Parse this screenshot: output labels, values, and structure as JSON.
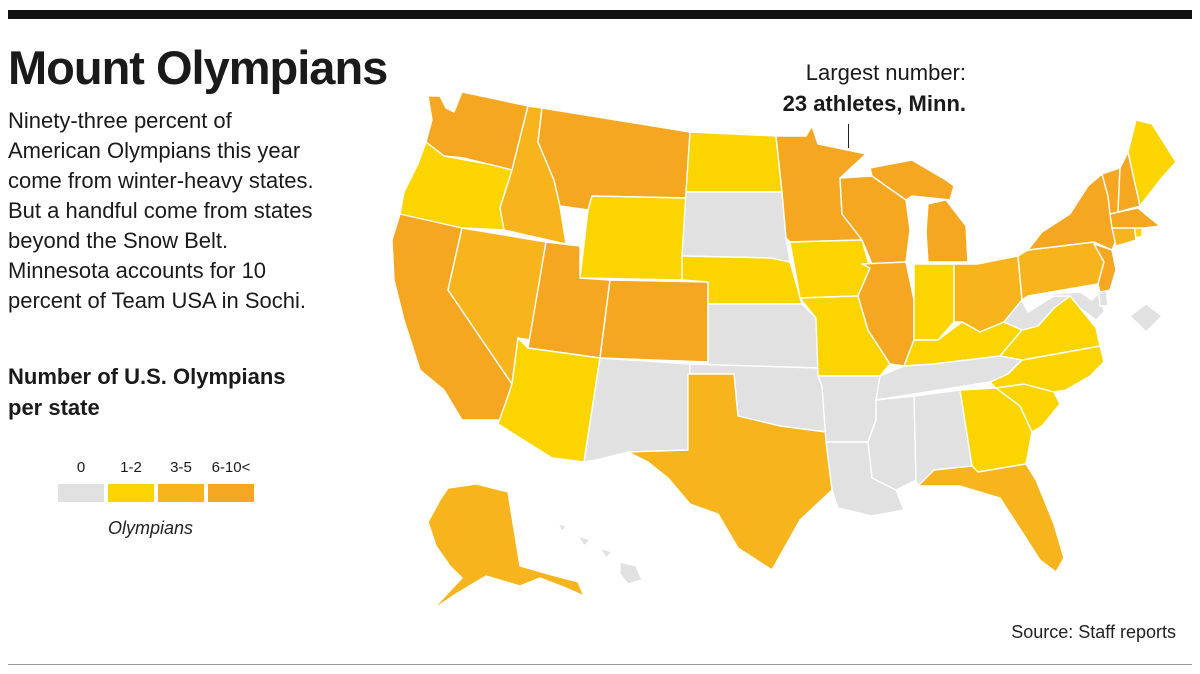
{
  "title": "Mount Olympians",
  "dek_lines": [
    "Ninety-three percent of",
    "American Olympians this year",
    "come from winter-heavy states.",
    "But a handful come from states",
    "beyond the Snow Belt.",
    "Minnesota accounts for 10",
    "percent of Team USA in Sochi."
  ],
  "legend": {
    "title_lines": [
      "Number of U.S. Olympians",
      "per state"
    ],
    "items": [
      {
        "label": "0",
        "color": "#e1e1e1"
      },
      {
        "label": "1-2",
        "color": "#fcd500"
      },
      {
        "label": "3-5",
        "color": "#f8b41c"
      },
      {
        "label": "6-10<",
        "color": "#f5a722"
      }
    ],
    "caption": "Olympians"
  },
  "callout": {
    "label": "Largest number:",
    "value": "23 athletes, Minn."
  },
  "source": "Source: Staff reports",
  "map_data": {
    "states": [
      {
        "id": "WA",
        "bin": 3
      },
      {
        "id": "OR",
        "bin": 1
      },
      {
        "id": "CA",
        "bin": 3
      },
      {
        "id": "ID",
        "bin": 2
      },
      {
        "id": "NV",
        "bin": 2
      },
      {
        "id": "MT",
        "bin": 3
      },
      {
        "id": "WY",
        "bin": 1
      },
      {
        "id": "UT",
        "bin": 3
      },
      {
        "id": "CO",
        "bin": 3
      },
      {
        "id": "AZ",
        "bin": 1
      },
      {
        "id": "NM",
        "bin": 0
      },
      {
        "id": "ND",
        "bin": 1
      },
      {
        "id": "SD",
        "bin": 0
      },
      {
        "id": "NE",
        "bin": 1
      },
      {
        "id": "KS",
        "bin": 0
      },
      {
        "id": "OK",
        "bin": 0
      },
      {
        "id": "TX",
        "bin": 2
      },
      {
        "id": "MN",
        "bin": 3
      },
      {
        "id": "IA",
        "bin": 1
      },
      {
        "id": "MO",
        "bin": 1
      },
      {
        "id": "AR",
        "bin": 0
      },
      {
        "id": "LA",
        "bin": 0
      },
      {
        "id": "WI",
        "bin": 3
      },
      {
        "id": "IL",
        "bin": 3
      },
      {
        "id": "MI",
        "bin": 3
      },
      {
        "id": "IN",
        "bin": 1
      },
      {
        "id": "OH",
        "bin": 2
      },
      {
        "id": "KY",
        "bin": 1
      },
      {
        "id": "TN",
        "bin": 0
      },
      {
        "id": "MS",
        "bin": 0
      },
      {
        "id": "AL",
        "bin": 0
      },
      {
        "id": "GA",
        "bin": 1
      },
      {
        "id": "FL",
        "bin": 2
      },
      {
        "id": "SC",
        "bin": 1
      },
      {
        "id": "NC",
        "bin": 1
      },
      {
        "id": "VA",
        "bin": 1
      },
      {
        "id": "WV",
        "bin": 0
      },
      {
        "id": "MD",
        "bin": 0
      },
      {
        "id": "DE",
        "bin": 0
      },
      {
        "id": "DC",
        "bin": 0
      },
      {
        "id": "PA",
        "bin": 2
      },
      {
        "id": "NJ",
        "bin": 3
      },
      {
        "id": "NY",
        "bin": 3
      },
      {
        "id": "CT",
        "bin": 2
      },
      {
        "id": "RI",
        "bin": 1
      },
      {
        "id": "MA",
        "bin": 3
      },
      {
        "id": "VT",
        "bin": 3
      },
      {
        "id": "NH",
        "bin": 3
      },
      {
        "id": "ME",
        "bin": 1
      },
      {
        "id": "AK",
        "bin": 2
      },
      {
        "id": "HI",
        "bin": 0
      }
    ]
  }
}
